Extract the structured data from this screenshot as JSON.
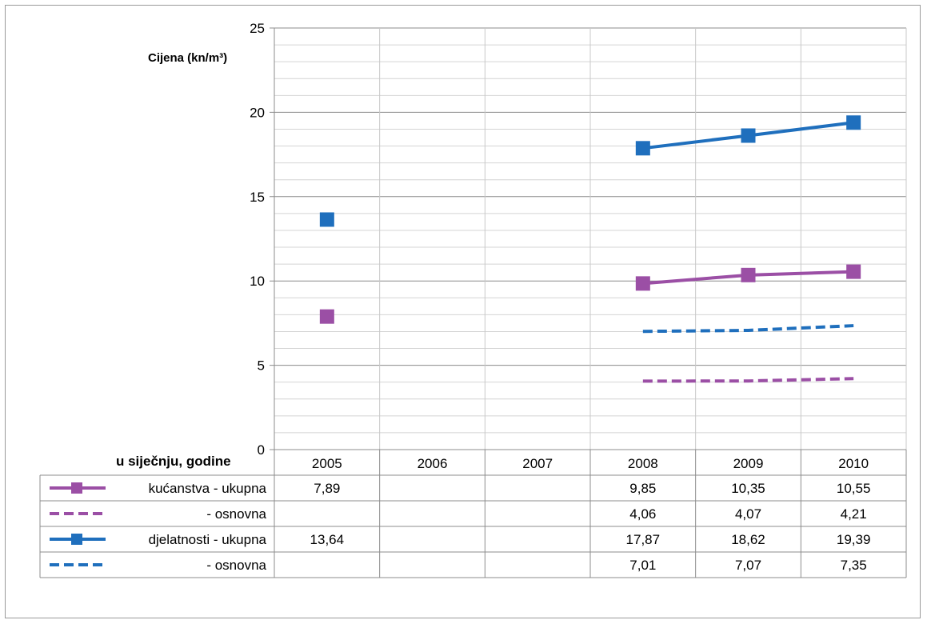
{
  "chart_data": {
    "type": "line",
    "ylabel": "Cijena (kn/m³)",
    "xlabel": "u siječnju, godine",
    "categories": [
      "2005",
      "2006",
      "2007",
      "2008",
      "2009",
      "2010"
    ],
    "ylim": [
      0,
      25
    ],
    "yticks": [
      "0",
      "5",
      "10",
      "15",
      "20",
      "25"
    ],
    "grid": true,
    "series": [
      {
        "name": "kućanstva - ukupna",
        "color": "#9b4fa5",
        "style": "solid",
        "marker": "square",
        "values": [
          7.89,
          null,
          null,
          9.85,
          10.35,
          10.55
        ],
        "labels": [
          "7,89",
          "",
          "",
          "9,85",
          "10,35",
          "10,55"
        ]
      },
      {
        "name": "- osnovna",
        "color": "#9b4fa5",
        "style": "dashed",
        "marker": "none",
        "values": [
          null,
          null,
          null,
          4.06,
          4.07,
          4.21
        ],
        "labels": [
          "",
          "",
          "",
          "4,06",
          "4,07",
          "4,21"
        ]
      },
      {
        "name": "djelatnosti - ukupna",
        "color": "#1f6fbd",
        "style": "solid",
        "marker": "square",
        "values": [
          13.64,
          null,
          null,
          17.87,
          18.62,
          19.39
        ],
        "labels": [
          "13,64",
          "",
          "",
          "17,87",
          "18,62",
          "19,39"
        ]
      },
      {
        "name": "- osnovna",
        "color": "#1f6fbd",
        "style": "dashed",
        "marker": "none",
        "values": [
          null,
          null,
          null,
          7.01,
          7.07,
          7.35
        ],
        "labels": [
          "",
          "",
          "",
          "7,01",
          "7,07",
          "7,35"
        ]
      }
    ]
  }
}
